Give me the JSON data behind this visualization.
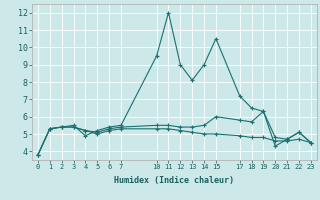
{
  "xlabel": "Humidex (Indice chaleur)",
  "ylabel": "",
  "bg_color": "#cce8e8",
  "grid_color": "#ffffff",
  "line_color": "#1a7070",
  "xlim": [
    -0.5,
    23.5
  ],
  "ylim": [
    3.5,
    12.5
  ],
  "xticks": [
    0,
    1,
    2,
    3,
    4,
    5,
    6,
    7,
    10,
    11,
    12,
    13,
    14,
    15,
    17,
    18,
    19,
    20,
    21,
    22,
    23
  ],
  "yticks": [
    4,
    5,
    6,
    7,
    8,
    9,
    10,
    11,
    12
  ],
  "series1_x": [
    0,
    1,
    2,
    3,
    4,
    5,
    6,
    7,
    10,
    11,
    12,
    13,
    14,
    15,
    17,
    18,
    19,
    20,
    21,
    22,
    23
  ],
  "series1_y": [
    3.8,
    5.3,
    5.4,
    5.5,
    4.9,
    5.2,
    5.4,
    5.5,
    9.5,
    12.0,
    9.0,
    8.1,
    9.0,
    10.5,
    7.2,
    6.5,
    6.3,
    4.3,
    4.7,
    5.1,
    4.5
  ],
  "series2_x": [
    0,
    1,
    2,
    3,
    4,
    5,
    6,
    7,
    10,
    11,
    12,
    13,
    14,
    15,
    17,
    18,
    19,
    20,
    21,
    22,
    23
  ],
  "series2_y": [
    3.8,
    5.3,
    5.4,
    5.4,
    5.2,
    5.1,
    5.3,
    5.4,
    5.5,
    5.5,
    5.4,
    5.4,
    5.5,
    6.0,
    5.8,
    5.7,
    6.3,
    4.8,
    4.7,
    5.1,
    4.5
  ],
  "series3_x": [
    0,
    1,
    2,
    3,
    4,
    5,
    6,
    7,
    10,
    11,
    12,
    13,
    14,
    15,
    17,
    18,
    19,
    20,
    21,
    22,
    23
  ],
  "series3_y": [
    3.8,
    5.3,
    5.4,
    5.4,
    5.2,
    5.0,
    5.2,
    5.3,
    5.3,
    5.3,
    5.2,
    5.1,
    5.0,
    5.0,
    4.9,
    4.8,
    4.8,
    4.6,
    4.6,
    4.7,
    4.5
  ],
  "marker": "+",
  "marker_size": 3,
  "linewidth": 0.8,
  "tick_fontsize": 5,
  "xlabel_fontsize": 6
}
